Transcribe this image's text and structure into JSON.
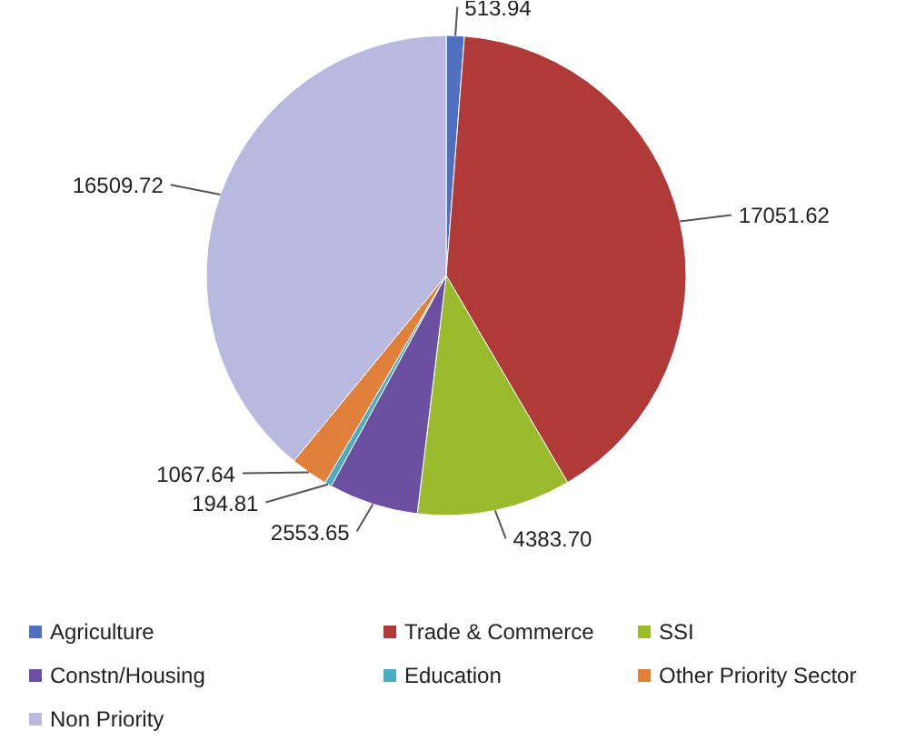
{
  "chart_data": {
    "type": "pie",
    "categories": [
      "Agriculture",
      "Trade & Commerce",
      "SSI",
      "Constn/Housing",
      "Education",
      "Other Priority Sector",
      "Non Priority"
    ],
    "values": [
      513.94,
      17051.62,
      4383.7,
      2553.65,
      194.81,
      1067.64,
      16509.72
    ],
    "colors": [
      "#4f6fbf",
      "#b03a37",
      "#9bbb2e",
      "#6b4fa0",
      "#4bacc6",
      "#e0803a",
      "#b9b9e0"
    ],
    "value_labels": [
      "513.94",
      "17051.62",
      "4383.70",
      "2553.65",
      "194.81",
      "1067.64",
      "16509.72"
    ],
    "legend": "bottom"
  }
}
